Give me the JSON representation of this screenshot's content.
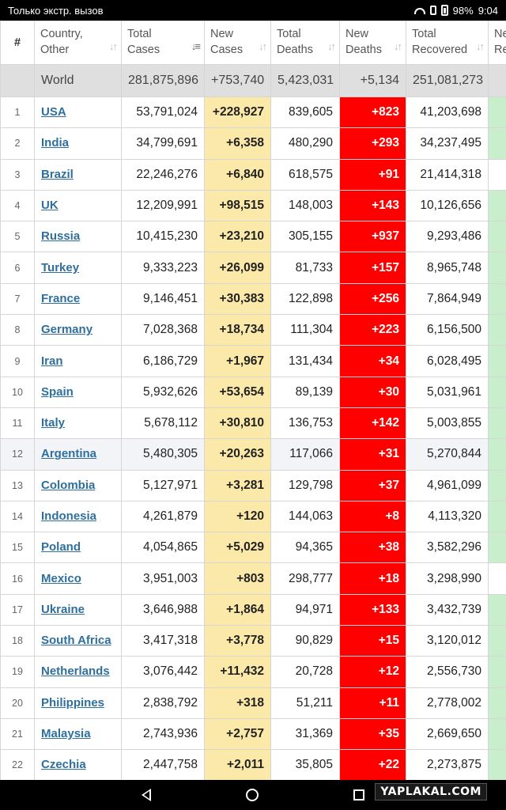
{
  "statusbar": {
    "left_text": "Только экстр. вызов",
    "battery": "98%",
    "time": "9:04"
  },
  "table": {
    "headers": {
      "num": "#",
      "country": [
        "Country,",
        "Other"
      ],
      "total_cases": [
        "Total",
        "Cases"
      ],
      "new_cases": [
        "New",
        "Cases"
      ],
      "total_deaths": [
        "Total",
        "Deaths"
      ],
      "new_deaths": [
        "New",
        "Deaths"
      ],
      "total_recovered": [
        "Total",
        "Recovered"
      ],
      "new_recovered": [
        "Ne",
        "Re"
      ]
    },
    "world": {
      "country": "World",
      "total": "281,875,896",
      "new": "+753,740",
      "deaths": "5,423,031",
      "new_deaths": "+5,134",
      "recovered": "251,081,273"
    },
    "rows": [
      {
        "num": "1",
        "country": "USA",
        "total": "53,791,024",
        "new": "+228,927",
        "deaths": "839,605",
        "new_deaths": "+823",
        "recovered": "41,203,698",
        "green": true
      },
      {
        "num": "2",
        "country": "India",
        "total": "34,799,691",
        "new": "+6,358",
        "deaths": "480,290",
        "new_deaths": "+293",
        "recovered": "34,237,495",
        "green": true
      },
      {
        "num": "3",
        "country": "Brazil",
        "total": "22,246,276",
        "new": "+6,840",
        "deaths": "618,575",
        "new_deaths": "+91",
        "recovered": "21,414,318",
        "green": false
      },
      {
        "num": "4",
        "country": "UK",
        "total": "12,209,991",
        "new": "+98,515",
        "deaths": "148,003",
        "new_deaths": "+143",
        "recovered": "10,126,656",
        "green": true
      },
      {
        "num": "5",
        "country": "Russia",
        "total": "10,415,230",
        "new": "+23,210",
        "deaths": "305,155",
        "new_deaths": "+937",
        "recovered": "9,293,486",
        "green": true
      },
      {
        "num": "6",
        "country": "Turkey",
        "total": "9,333,223",
        "new": "+26,099",
        "deaths": "81,733",
        "new_deaths": "+157",
        "recovered": "8,965,748",
        "green": true
      },
      {
        "num": "7",
        "country": "France",
        "total": "9,146,451",
        "new": "+30,383",
        "deaths": "122,898",
        "new_deaths": "+256",
        "recovered": "7,864,949",
        "green": true
      },
      {
        "num": "8",
        "country": "Germany",
        "total": "7,028,368",
        "new": "+18,734",
        "deaths": "111,304",
        "new_deaths": "+223",
        "recovered": "6,156,500",
        "green": true
      },
      {
        "num": "9",
        "country": "Iran",
        "total": "6,186,729",
        "new": "+1,967",
        "deaths": "131,434",
        "new_deaths": "+34",
        "recovered": "6,028,495",
        "green": true
      },
      {
        "num": "10",
        "country": "Spain",
        "total": "5,932,626",
        "new": "+53,654",
        "deaths": "89,139",
        "new_deaths": "+30",
        "recovered": "5,031,961",
        "green": true
      },
      {
        "num": "11",
        "country": "Italy",
        "total": "5,678,112",
        "new": "+30,810",
        "deaths": "136,753",
        "new_deaths": "+142",
        "recovered": "5,003,855",
        "green": true
      },
      {
        "num": "12",
        "country": "Argentina",
        "total": "5,480,305",
        "new": "+20,263",
        "deaths": "117,066",
        "new_deaths": "+31",
        "recovered": "5,270,844",
        "green": true,
        "alt": true
      },
      {
        "num": "13",
        "country": "Colombia",
        "total": "5,127,971",
        "new": "+3,281",
        "deaths": "129,798",
        "new_deaths": "+37",
        "recovered": "4,961,099",
        "green": true
      },
      {
        "num": "14",
        "country": "Indonesia",
        "total": "4,261,879",
        "new": "+120",
        "deaths": "144,063",
        "new_deaths": "+8",
        "recovered": "4,113,320",
        "green": true
      },
      {
        "num": "15",
        "country": "Poland",
        "total": "4,054,865",
        "new": "+5,029",
        "deaths": "94,365",
        "new_deaths": "+38",
        "recovered": "3,582,296",
        "green": true
      },
      {
        "num": "16",
        "country": "Mexico",
        "total": "3,951,003",
        "new": "+803",
        "deaths": "298,777",
        "new_deaths": "+18",
        "recovered": "3,298,990",
        "green": false
      },
      {
        "num": "17",
        "country": "Ukraine",
        "total": "3,646,988",
        "new": "+1,864",
        "deaths": "94,971",
        "new_deaths": "+133",
        "recovered": "3,432,739",
        "green": true
      },
      {
        "num": "18",
        "country": "South Africa",
        "total": "3,417,318",
        "new": "+3,778",
        "deaths": "90,829",
        "new_deaths": "+15",
        "recovered": "3,120,012",
        "green": true
      },
      {
        "num": "19",
        "country": "Netherlands",
        "total": "3,076,442",
        "new": "+11,432",
        "deaths": "20,728",
        "new_deaths": "+12",
        "recovered": "2,556,730",
        "green": true
      },
      {
        "num": "20",
        "country": "Philippines",
        "total": "2,838,792",
        "new": "+318",
        "deaths": "51,211",
        "new_deaths": "+11",
        "recovered": "2,778,002",
        "green": true
      },
      {
        "num": "21",
        "country": "Malaysia",
        "total": "2,743,936",
        "new": "+2,757",
        "deaths": "31,369",
        "new_deaths": "+35",
        "recovered": "2,669,650",
        "green": true
      },
      {
        "num": "22",
        "country": "Czechia",
        "total": "2,447,758",
        "new": "+2,011",
        "deaths": "35,805",
        "new_deaths": "+22",
        "recovered": "2,273,875",
        "green": true
      }
    ]
  },
  "watermark": "YAPLAKAL.COM",
  "colors": {
    "new_cases_bg": "#fbe9a9",
    "new_deaths_bg": "#ff0000",
    "new_recovered_bg": "#c8eecb",
    "world_bg": "#dfdfdf",
    "link": "#2e6f9e"
  },
  "icons": [
    "wifi-icon",
    "vibrate-icon",
    "battery-icon",
    "back-icon",
    "home-icon",
    "recent-apps-icon",
    "sort-icon"
  ]
}
